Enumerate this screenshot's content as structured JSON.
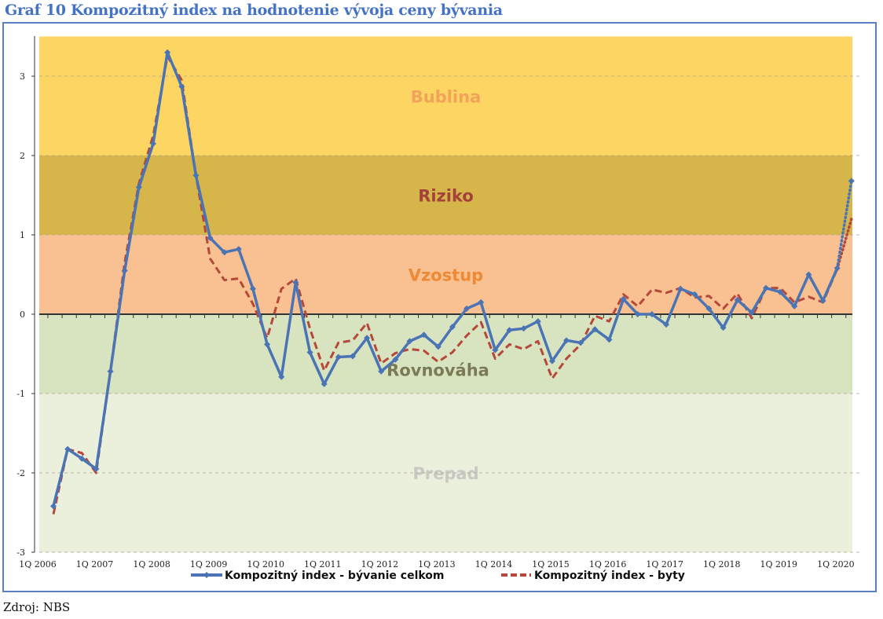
{
  "title": "Graf 10 Kompozitný index na hodnotenie vývoja ceny bývania",
  "source": "Zdroj: NBS",
  "chart_data": {
    "type": "line",
    "title": "Graf 10 Kompozitný index na hodnotenie vývoja ceny bývania",
    "xlabel": "",
    "ylabel": "",
    "ylim": [
      -3,
      3.5
    ],
    "yticks": [
      "3",
      "2",
      "1",
      "0",
      "-1",
      "-2",
      "-3"
    ],
    "ytick_values": [
      3,
      2,
      1,
      0,
      -1,
      -2,
      -3
    ],
    "xtick_labels": [
      "1Q 2006",
      "1Q 2007",
      "1Q 2008",
      "1Q 2009",
      "1Q 2010",
      "1Q 2011",
      "1Q 2012",
      "1Q 2013",
      "1Q 2014",
      "1Q 2015",
      "1Q 2016",
      "1Q 2017",
      "1Q 2018",
      "1Q 2019",
      "1Q 2020"
    ],
    "n_quarters": 57,
    "bands": [
      {
        "name": "Bublina",
        "from": 2,
        "to": 3.5,
        "color": "#FDD563",
        "text_color": "#F2A35A"
      },
      {
        "name": "Riziko",
        "from": 1,
        "to": 2,
        "color": "#D6B64A",
        "text_color": "#A3423A"
      },
      {
        "name": "Vzostup",
        "from": 0,
        "to": 1,
        "color": "#F9C091",
        "text_color": "#EE8A35"
      },
      {
        "name": "Rovnováha",
        "from": -1,
        "to": 0,
        "color": "#D8E4C0",
        "text_color": "#7A7B55"
      },
      {
        "name": "Prepad",
        "from": -3,
        "to": -1,
        "color": "#EAF0DC",
        "text_color": "#C9C9C4"
      }
    ],
    "series": [
      {
        "name": "Kompozitný index - bývanie celkom",
        "color": "#4A74B4",
        "style": "solid-markers",
        "values": [
          -2.42,
          -1.7,
          -1.82,
          -1.95,
          -0.72,
          0.55,
          1.6,
          2.15,
          3.3,
          2.87,
          1.75,
          0.96,
          0.78,
          0.82,
          0.32,
          -0.38,
          -0.79,
          0.4,
          -0.48,
          -0.88,
          -0.54,
          -0.53,
          -0.3,
          -0.72,
          -0.57,
          -0.34,
          -0.26,
          -0.41,
          -0.16,
          0.07,
          0.15,
          -0.45,
          -0.2,
          -0.18,
          -0.09,
          -0.59,
          -0.33,
          -0.36,
          -0.19,
          -0.32,
          0.19,
          0.0,
          0.0,
          -0.13,
          0.32,
          0.25,
          0.07,
          -0.17,
          0.18,
          0.02,
          0.33,
          0.28,
          0.1,
          0.5,
          0.17,
          0.58,
          1.68
        ]
      },
      {
        "name": "Kompozitný index - byty",
        "color": "#B5483A",
        "style": "dashed",
        "values": [
          -2.52,
          -1.7,
          -1.75,
          -2.0,
          -0.72,
          0.65,
          1.65,
          2.25,
          3.25,
          2.95,
          1.75,
          0.7,
          0.43,
          0.45,
          0.13,
          -0.3,
          0.32,
          0.45,
          -0.18,
          -0.71,
          -0.36,
          -0.33,
          -0.11,
          -0.62,
          -0.49,
          -0.44,
          -0.46,
          -0.6,
          -0.48,
          -0.27,
          -0.1,
          -0.56,
          -0.38,
          -0.44,
          -0.34,
          -0.81,
          -0.56,
          -0.38,
          -0.02,
          -0.09,
          0.25,
          0.1,
          0.31,
          0.27,
          0.33,
          0.21,
          0.23,
          0.07,
          0.26,
          -0.05,
          0.33,
          0.33,
          0.15,
          0.22,
          0.15,
          0.57,
          1.2
        ]
      }
    ],
    "last_segment_style": "dotted",
    "legend": "bottom"
  }
}
